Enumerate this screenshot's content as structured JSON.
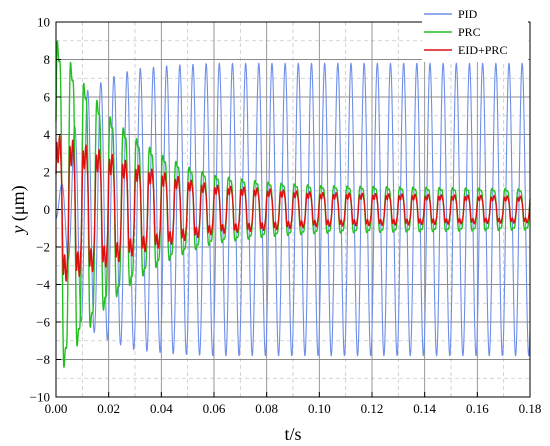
{
  "chart_data": {
    "type": "line",
    "title": "",
    "xlabel": "t/s",
    "ylabel_italic": "y",
    "ylabel_unit": " (μm)",
    "xlim": [
      0.0,
      0.18
    ],
    "ylim": [
      -10,
      10
    ],
    "x_ticks": [
      0.0,
      0.02,
      0.04,
      0.06,
      0.08,
      0.1,
      0.12,
      0.14,
      0.16,
      0.18
    ],
    "x_tick_labels": [
      "0.00",
      "0.02",
      "0.04",
      "0.06",
      "0.08",
      "0.10",
      "0.12",
      "0.14",
      "0.16",
      "0.18"
    ],
    "y_ticks": [
      -10,
      -8,
      -6,
      -4,
      -2,
      0,
      2,
      4,
      6,
      8,
      10
    ],
    "y_tick_labels": [
      "−10",
      "−8",
      "−6",
      "−4",
      "−2",
      "0",
      "2",
      "4",
      "6",
      "8",
      "10"
    ],
    "grid": true,
    "legend_position": "top-right",
    "series": [
      {
        "name": "PID",
        "color": "#6f8fe8",
        "description": "sinusoid about 200 Hz, amplitude rising from ~6 to ~7.8 um",
        "frequency_hz": 200,
        "peak_values": [
          2.0,
          6.2,
          7.0,
          7.5,
          7.7,
          7.8,
          7.8,
          7.8,
          7.8,
          7.8
        ],
        "peak_times": [
          0.0,
          0.01,
          0.02,
          0.03,
          0.045,
          0.06,
          0.09,
          0.12,
          0.15,
          0.18
        ]
      },
      {
        "name": "PRC",
        "color": "#22c020",
        "description": "damped oscillation starting ~10 um, decaying to ~1.2 um",
        "frequency_hz": 200,
        "peak_values": [
          10.0,
          7.5,
          5.5,
          4.2,
          3.2,
          2.5,
          2.0,
          1.6,
          1.4,
          1.3,
          1.2
        ],
        "peak_times": [
          0.0,
          0.01,
          0.02,
          0.03,
          0.04,
          0.05,
          0.06,
          0.08,
          0.1,
          0.14,
          0.18
        ]
      },
      {
        "name": "EID+PRC",
        "color": "#dd1010",
        "description": "damped oscillation starting ~4 um, decaying to ~0.7 um",
        "frequency_hz": 200,
        "peak_values": [
          4.0,
          3.5,
          3.0,
          2.4,
          2.0,
          1.6,
          1.3,
          1.1,
          0.9,
          0.8,
          0.7
        ],
        "peak_times": [
          0.0,
          0.01,
          0.02,
          0.03,
          0.04,
          0.05,
          0.06,
          0.08,
          0.1,
          0.14,
          0.18
        ]
      }
    ]
  }
}
